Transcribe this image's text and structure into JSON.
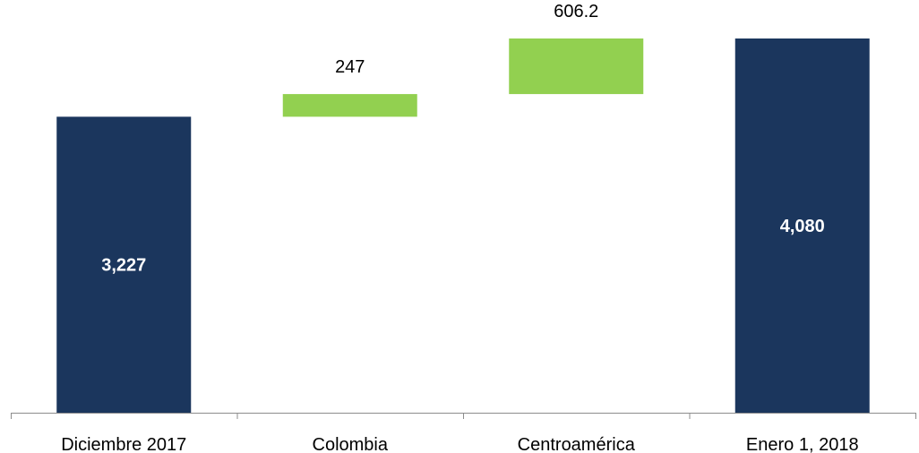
{
  "chart_data": {
    "type": "bar",
    "subtype": "waterfall",
    "categories": [
      "Diciembre 2017",
      "Colombia",
      "Centroamérica",
      "Enero 1, 2018"
    ],
    "values": [
      3227,
      247,
      606.2,
      4080
    ],
    "value_labels": [
      "3,227",
      "247",
      "606.2",
      "4,080"
    ],
    "bar_kinds": [
      "total",
      "increase",
      "increase",
      "total"
    ],
    "title": "",
    "xlabel": "",
    "ylabel": "",
    "ylim": [
      0,
      4400
    ],
    "grid": false,
    "legend": "none",
    "colors": {
      "total": "#1b365d",
      "increase": "#92d050"
    }
  }
}
